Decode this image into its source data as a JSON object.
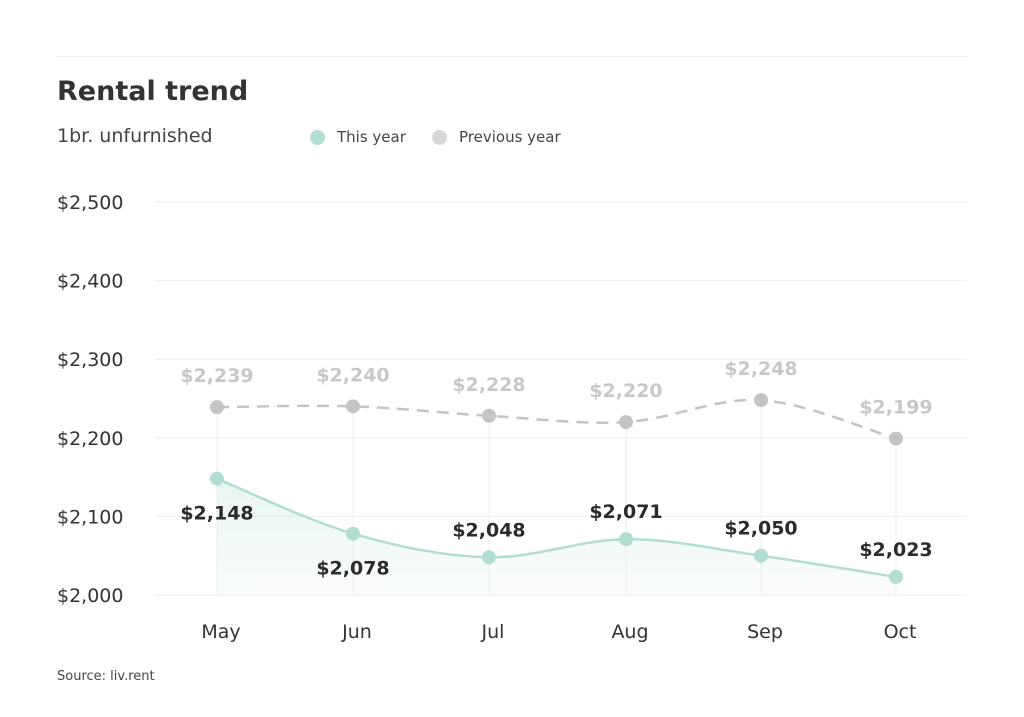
{
  "chart_data": {
    "type": "line",
    "title": "Rental trend",
    "subtitle": "1br. unfurnished",
    "categories": [
      "May",
      "Jun",
      "Jul",
      "Aug",
      "Sep",
      "Oct"
    ],
    "series": [
      {
        "name": "This year",
        "color": "#b2ddd2",
        "values": [
          2148,
          2078,
          2048,
          2071,
          2050,
          2023
        ],
        "labels": [
          "$2,148",
          "$2,078",
          "$2,048",
          "$2,071",
          "$2,050",
          "$2,023"
        ]
      },
      {
        "name": "Previous year",
        "color": "#c4c4c4",
        "values": [
          2239,
          2240,
          2228,
          2220,
          2248,
          2199
        ],
        "labels": [
          "$2,239",
          "$2,240",
          "$2,228",
          "$2,220",
          "$2,248",
          "$2,199"
        ]
      }
    ],
    "yticks": [
      2000,
      2100,
      2200,
      2300,
      2400,
      2500
    ],
    "ytick_labels": [
      "$2,000",
      "$2,100",
      "$2,200",
      "$2,300",
      "$2,400",
      "$2,500"
    ],
    "ylim": [
      2000,
      2500
    ],
    "grid": true,
    "legend": "top"
  },
  "source": "Source: liv.rent"
}
